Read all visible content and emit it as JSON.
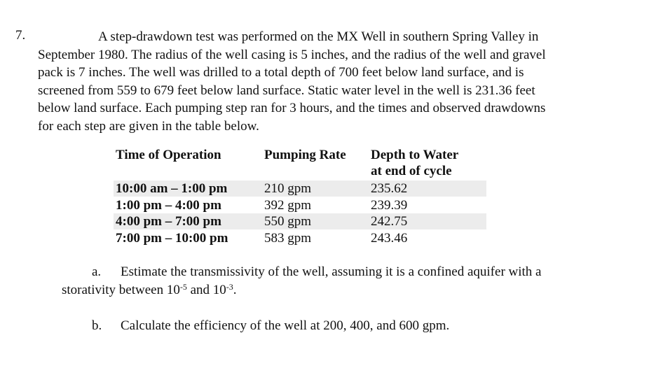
{
  "question": {
    "number": "7.",
    "paragraph_lines": [
      "A step-drawdown test was performed on the MX Well in southern Spring Valley in",
      "September 1980. The radius of the well casing is 5 inches, and the radius of the well and gravel",
      "pack is 7 inches. The well was drilled to a total depth of 700 feet below land surface, and is",
      "screened from 559 to 679 feet below land surface. Static water level in the well is 231.36 feet",
      "below land surface. Each pumping step ran for 3 hours, and the times and observed drawdowns",
      "for each step are given in the table below."
    ]
  },
  "table": {
    "headers": {
      "time": "Time of Operation",
      "rate": "Pumping Rate",
      "depth_line1": "Depth to Water",
      "depth_line2": "at end of cycle"
    },
    "rows": [
      {
        "time": "10:00 am – 1:00 pm",
        "rate": "210 gpm",
        "depth": "235.62",
        "shaded": true
      },
      {
        "time": "1:00 pm – 4:00 pm",
        "rate": "392 gpm",
        "depth": "239.39",
        "shaded": false
      },
      {
        "time": "4:00 pm – 7:00 pm",
        "rate": "550 gpm",
        "depth": "242.75",
        "shaded": true
      },
      {
        "time": "7:00 pm – 10:00 pm",
        "rate": "583 gpm",
        "depth": "243.46",
        "shaded": false
      }
    ],
    "stripe_color": "#ececec"
  },
  "parts": {
    "a": {
      "label": "a.",
      "line1": "Estimate the transmissivity of the well, assuming it is a confined aquifer with a",
      "line2_pre": "storativity between 10",
      "exp1": "-5",
      "line2_mid": " and 10",
      "exp2": "-3",
      "line2_post": "."
    },
    "b": {
      "label": "b.",
      "text": "Calculate the efficiency of the well at 200, 400, and 600 gpm."
    }
  }
}
